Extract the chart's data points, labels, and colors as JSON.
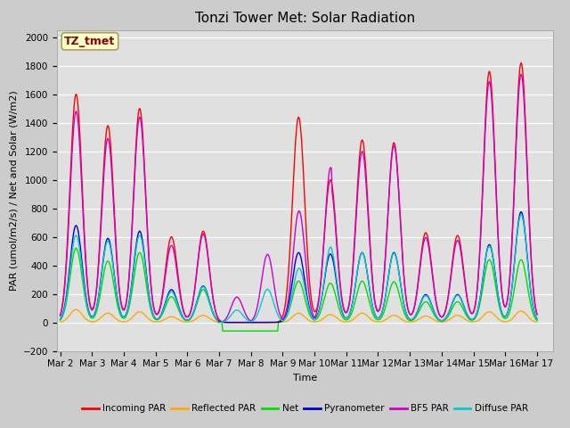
{
  "title": "Tonzi Tower Met: Solar Radiation",
  "ylabel": "PAR (umol/m2/s) / Net and Solar (W/m2)",
  "xlabel": "Time",
  "annotation": "TZ_tmet",
  "ylim": [
    -200,
    2050
  ],
  "yticks": [
    -200,
    0,
    200,
    400,
    600,
    800,
    1000,
    1200,
    1400,
    1600,
    1800,
    2000
  ],
  "xtick_labels": [
    "Mar 2",
    "Mar 3",
    "Mar 4",
    "Mar 5",
    "Mar 6",
    "Mar 7",
    "Mar 8",
    "Mar 9",
    "Mar 10",
    "Mar 11",
    "Mar 12",
    "Mar 13",
    "Mar 14",
    "Mar 15",
    "Mar 16",
    "Mar 17"
  ],
  "series_colors": {
    "incoming_par": "#ff0000",
    "reflected_par": "#ffaa00",
    "net": "#00dd00",
    "pyranometer": "#0000cc",
    "bf5_par": "#cc00cc",
    "diffuse_par": "#00cccc"
  },
  "legend_labels": [
    "Incoming PAR",
    "Reflected PAR",
    "Net",
    "Pyranometer",
    "BF5 PAR",
    "Diffuse PAR"
  ],
  "title_fontsize": 11,
  "axis_fontsize": 8,
  "tick_fontsize": 7.5
}
